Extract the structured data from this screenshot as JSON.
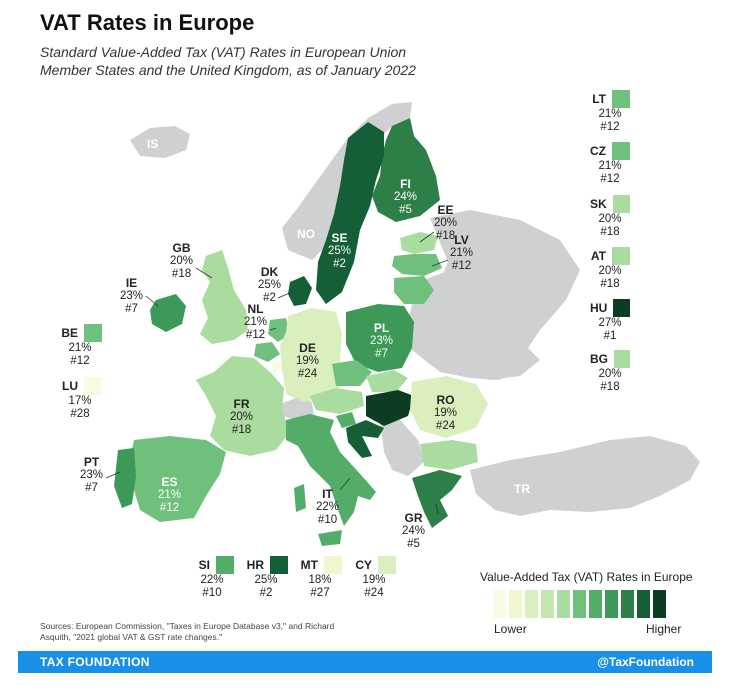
{
  "header": {
    "title": "VAT Rates in Europe",
    "subtitle": "Standard Value-Added Tax (VAT) Rates in European Union Member States and the United Kingdom, as of January 2022"
  },
  "colors": {
    "non_eu": "#cfd0d2",
    "r17": "#f7fbe1",
    "r18": "#eef7cf",
    "r19": "#d9efbd",
    "r20": "#a9dc9e",
    "r21": "#6fc07c",
    "r22": "#53ad68",
    "r23": "#3d9958",
    "r24": "#2e7e48",
    "r25": "#145f35",
    "r27": "#0c3d22",
    "footer": "#1a8fe8"
  },
  "map_labels": {
    "FI": {
      "code": "FI",
      "rate": "24%",
      "rank": "#5"
    },
    "SE": {
      "code": "SE",
      "rate": "25%",
      "rank": "#2"
    },
    "EE": {
      "code": "EE",
      "rate": "20%",
      "rank": "#18"
    },
    "LV": {
      "code": "LV",
      "rate": "21%",
      "rank": "#12"
    },
    "GB": {
      "code": "GB",
      "rate": "20%",
      "rank": "#18"
    },
    "DK": {
      "code": "DK",
      "rate": "25%",
      "rank": "#2"
    },
    "IE": {
      "code": "IE",
      "rate": "23%",
      "rank": "#7"
    },
    "NL": {
      "code": "NL",
      "rate": "21%",
      "rank": "#12"
    },
    "PL": {
      "code": "PL",
      "rate": "23%",
      "rank": "#7"
    },
    "DE": {
      "code": "DE",
      "rate": "19%",
      "rank": "#24"
    },
    "FR": {
      "code": "FR",
      "rate": "20%",
      "rank": "#18"
    },
    "RO": {
      "code": "RO",
      "rate": "19%",
      "rank": "#24"
    },
    "PT": {
      "code": "PT",
      "rate": "23%",
      "rank": "#7"
    },
    "ES": {
      "code": "ES",
      "rate": "21%",
      "rank": "#12"
    },
    "IT": {
      "code": "IT",
      "rate": "22%",
      "rank": "#10"
    },
    "GR": {
      "code": "GR",
      "rate": "24%",
      "rank": "#5"
    }
  },
  "non_eu_labels": {
    "IS": "IS",
    "NO": "NO",
    "TR": "TR"
  },
  "side_boxes": {
    "LT": {
      "code": "LT",
      "rate": "21%",
      "rank": "#12"
    },
    "CZ": {
      "code": "CZ",
      "rate": "21%",
      "rank": "#12"
    },
    "SK": {
      "code": "SK",
      "rate": "20%",
      "rank": "#18"
    },
    "AT": {
      "code": "AT",
      "rate": "20%",
      "rank": "#18"
    },
    "HU": {
      "code": "HU",
      "rate": "27%",
      "rank": "#1"
    },
    "BG": {
      "code": "BG",
      "rate": "20%",
      "rank": "#18"
    },
    "BE": {
      "code": "BE",
      "rate": "21%",
      "rank": "#12"
    },
    "LU": {
      "code": "LU",
      "rate": "17%",
      "rank": "#28"
    },
    "SI": {
      "code": "SI",
      "rate": "22%",
      "rank": "#10"
    },
    "HR": {
      "code": "HR",
      "rate": "25%",
      "rank": "#2"
    },
    "MT": {
      "code": "MT",
      "rate": "18%",
      "rank": "#27"
    },
    "CY": {
      "code": "CY",
      "rate": "19%",
      "rank": "#24"
    }
  },
  "legend": {
    "title": "Value-Added Tax (VAT) Rates in Europe",
    "low_label": "Lower",
    "high_label": "Higher",
    "scale_colors": [
      "#f7fbe1",
      "#eef7cf",
      "#d9efbd",
      "#c2e6ad",
      "#a9dc9e",
      "#6fc07c",
      "#53ad68",
      "#3d9958",
      "#2e7e48",
      "#145f35",
      "#0c3d22"
    ]
  },
  "sources": "Sources: European Commission, \"Taxes in Europe Database v3,\" and Richard Asquith, \"2021 global VAT & GST rate changes.\"",
  "footer": {
    "left": "TAX FOUNDATION",
    "right": "@TaxFoundation"
  }
}
